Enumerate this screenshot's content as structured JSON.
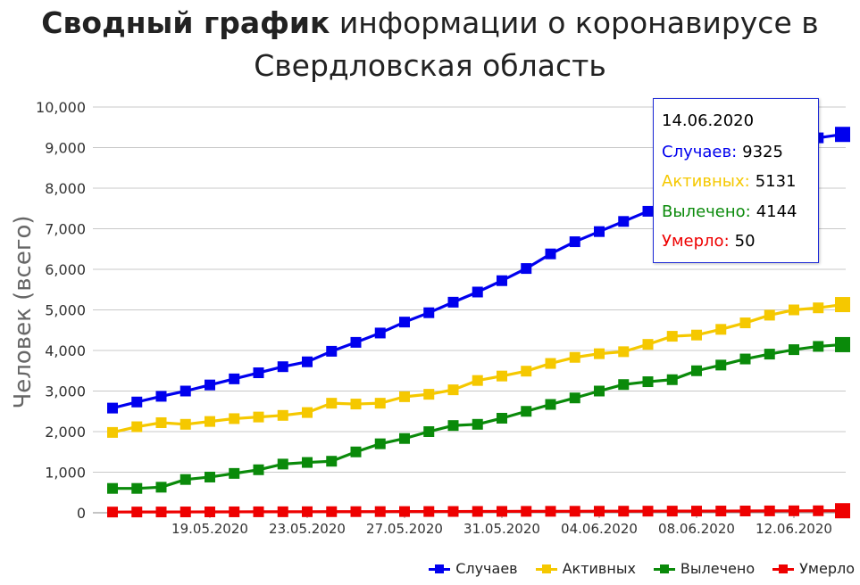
{
  "title_bold": "Сводный график",
  "title_rest": " информации о коронавирусе в",
  "title_line2": "Свердловская область",
  "chart_data": {
    "type": "line",
    "ylabel": "Человек (всего)",
    "xlabel": "",
    "ylim": [
      0,
      10000
    ],
    "yticks": [
      "0",
      "1,000",
      "2,000",
      "3,000",
      "4,000",
      "5,000",
      "6,000",
      "7,000",
      "8,000",
      "9,000",
      "10,000"
    ],
    "x": [
      "15.05.2020",
      "16.05.2020",
      "17.05.2020",
      "18.05.2020",
      "19.05.2020",
      "20.05.2020",
      "21.05.2020",
      "22.05.2020",
      "23.05.2020",
      "24.05.2020",
      "25.05.2020",
      "26.05.2020",
      "27.05.2020",
      "28.05.2020",
      "29.05.2020",
      "30.05.2020",
      "31.05.2020",
      "01.06.2020",
      "02.06.2020",
      "03.06.2020",
      "04.06.2020",
      "05.06.2020",
      "06.06.2020",
      "07.06.2020",
      "08.06.2020",
      "09.06.2020",
      "10.06.2020",
      "11.06.2020",
      "12.06.2020",
      "13.06.2020",
      "14.06.2020"
    ],
    "xticks": [
      "19.05.2020",
      "23.05.2020",
      "27.05.2020",
      "31.05.2020",
      "04.06.2020",
      "08.06.2020",
      "12.06.2020"
    ],
    "grid": true,
    "legend_position": "bottom-right",
    "series": [
      {
        "name": "Случаев",
        "color": "#0000ee",
        "values": [
          2580,
          2730,
          2870,
          3000,
          3150,
          3300,
          3450,
          3600,
          3720,
          3980,
          4200,
          4430,
          4700,
          4930,
          5190,
          5440,
          5720,
          6020,
          6380,
          6680,
          6930,
          7180,
          7430,
          7680,
          7920,
          8160,
          8500,
          8850,
          9080,
          9240,
          9325
        ]
      },
      {
        "name": "Активных",
        "color": "#f5c800",
        "values": [
          1980,
          2120,
          2220,
          2180,
          2250,
          2320,
          2360,
          2400,
          2470,
          2700,
          2680,
          2700,
          2860,
          2920,
          3030,
          3260,
          3370,
          3490,
          3680,
          3830,
          3920,
          3970,
          4150,
          4350,
          4380,
          4520,
          4680,
          4870,
          5000,
          5050,
          5131
        ]
      },
      {
        "name": "Вылечено",
        "color": "#0a8a0a",
        "values": [
          600,
          600,
          630,
          820,
          880,
          970,
          1060,
          1200,
          1240,
          1270,
          1500,
          1700,
          1830,
          2000,
          2150,
          2180,
          2330,
          2500,
          2670,
          2830,
          3000,
          3160,
          3230,
          3280,
          3500,
          3640,
          3790,
          3910,
          4020,
          4100,
          4144
        ]
      },
      {
        "name": "Умерло",
        "color": "#ee0000",
        "values": [
          18,
          19,
          20,
          21,
          22,
          23,
          24,
          25,
          26,
          27,
          28,
          29,
          30,
          31,
          32,
          33,
          34,
          35,
          36,
          37,
          38,
          39,
          40,
          41,
          42,
          43,
          44,
          46,
          48,
          49,
          50
        ]
      }
    ],
    "tooltip": {
      "date": "14.06.2020",
      "rows": [
        {
          "label": "Случаев:",
          "value": "9325",
          "color": "#0000ee"
        },
        {
          "label": "Активных:",
          "value": "5131",
          "color": "#f5c800"
        },
        {
          "label": "Вылечено:",
          "value": "4144",
          "color": "#0a8a0a"
        },
        {
          "label": "Умерло:",
          "value": "50",
          "color": "#ee0000"
        }
      ]
    }
  }
}
